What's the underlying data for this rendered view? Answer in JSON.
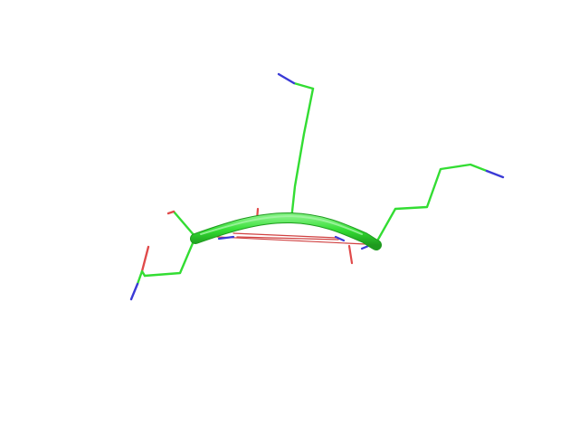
{
  "scene": {
    "background": "#ffffff",
    "representation": "cartoon-tube-with-sticks",
    "colors": {
      "carbon": "#33dd33",
      "carbon_dark": "#1e9a1e",
      "nitrogen": "#3a3ad6",
      "oxygen": "#e04a4a",
      "hbond": "#d04040"
    }
  }
}
